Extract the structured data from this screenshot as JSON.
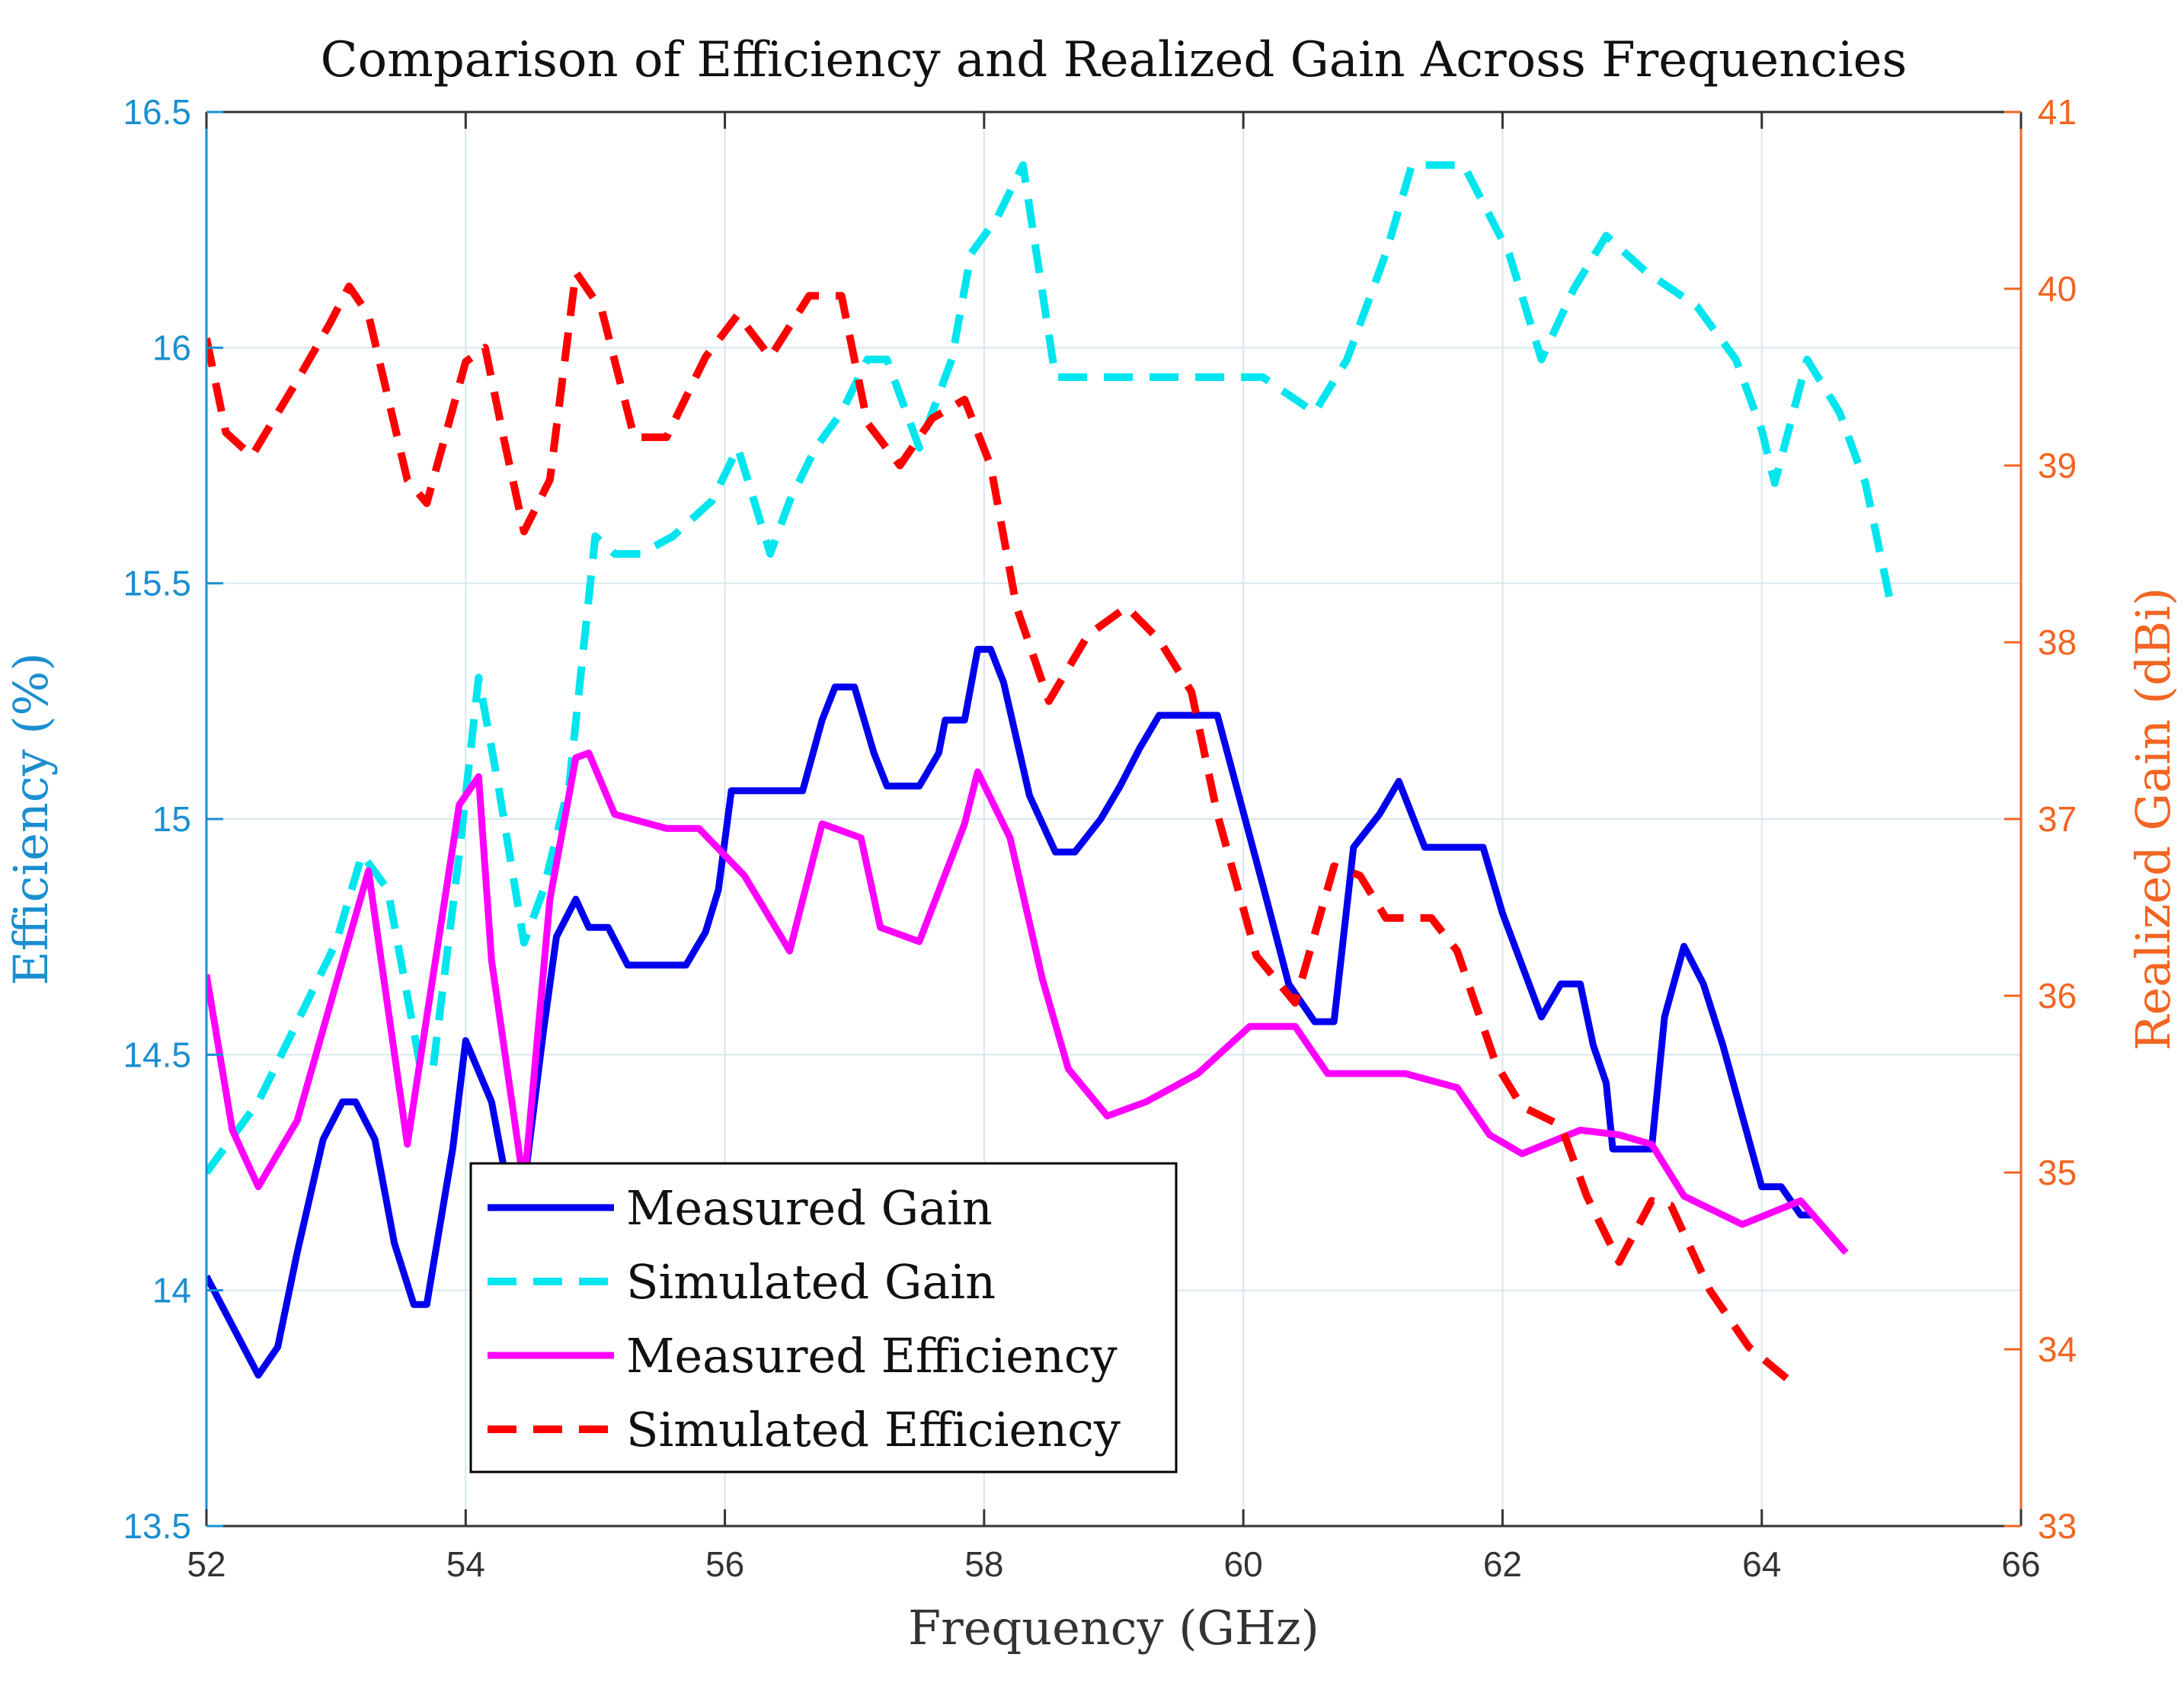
{
  "chart_data": {
    "type": "line",
    "title": "Comparison of Efficiency and Realized Gain Across Frequencies",
    "xlabel": "Frequency (GHz)",
    "ylabel_left": "Efficiency (%)",
    "ylabel_right": "Realized Gain (dBi)",
    "xlim": [
      52,
      66
    ],
    "ylim_left": [
      13.5,
      16.5
    ],
    "ylim_right": [
      33,
      41
    ],
    "xticks": [
      "52",
      "54",
      "56",
      "58",
      "60",
      "62",
      "64",
      "66"
    ],
    "yticks_left": [
      "13.5",
      "14",
      "14.5",
      "15",
      "15.5",
      "16",
      "16.5"
    ],
    "yticks_right": [
      "33",
      "34",
      "35",
      "36",
      "37",
      "38",
      "39",
      "40",
      "41"
    ],
    "grid": true,
    "legend_position": "lower-left",
    "colors": {
      "left_axis": "#1a8fd0",
      "right_axis": "#f26522",
      "grid": "#d9e6ee",
      "measured_gain": "#0000ee",
      "simulated_gain": "#00e5ee",
      "measured_efficiency": "#ff00ff",
      "simulated_efficiency": "#ff0000"
    },
    "series": [
      {
        "name": "Measured Gain",
        "axis": "left",
        "style": "solid",
        "color_key": "measured_gain",
        "points": [
          [
            52.0,
            14.03
          ],
          [
            52.4,
            13.82
          ],
          [
            52.55,
            13.88
          ],
          [
            52.7,
            14.08
          ],
          [
            52.9,
            14.32
          ],
          [
            53.05,
            14.4
          ],
          [
            53.15,
            14.4
          ],
          [
            53.3,
            14.32
          ],
          [
            53.45,
            14.1
          ],
          [
            53.6,
            13.97
          ],
          [
            53.7,
            13.97
          ],
          [
            53.9,
            14.3
          ],
          [
            54.0,
            14.53
          ],
          [
            54.2,
            14.4
          ],
          [
            54.35,
            14.18
          ],
          [
            54.45,
            14.22
          ],
          [
            54.6,
            14.55
          ],
          [
            54.7,
            14.75
          ],
          [
            54.85,
            14.83
          ],
          [
            54.95,
            14.77
          ],
          [
            55.1,
            14.77
          ],
          [
            55.25,
            14.69
          ],
          [
            55.7,
            14.69
          ],
          [
            55.85,
            14.76
          ],
          [
            55.95,
            14.85
          ],
          [
            56.05,
            15.06
          ],
          [
            56.6,
            15.06
          ],
          [
            56.75,
            15.21
          ],
          [
            56.85,
            15.28
          ],
          [
            57.0,
            15.28
          ],
          [
            57.15,
            15.14
          ],
          [
            57.25,
            15.07
          ],
          [
            57.5,
            15.07
          ],
          [
            57.65,
            15.14
          ],
          [
            57.7,
            15.21
          ],
          [
            57.85,
            15.21
          ],
          [
            57.95,
            15.36
          ],
          [
            58.05,
            15.36
          ],
          [
            58.15,
            15.29
          ],
          [
            58.35,
            15.05
          ],
          [
            58.55,
            14.93
          ],
          [
            58.7,
            14.93
          ],
          [
            58.9,
            15.0
          ],
          [
            59.05,
            15.07
          ],
          [
            59.2,
            15.15
          ],
          [
            59.35,
            15.22
          ],
          [
            59.8,
            15.22
          ],
          [
            60.15,
            14.86
          ],
          [
            60.35,
            14.65
          ],
          [
            60.55,
            14.57
          ],
          [
            60.7,
            14.57
          ],
          [
            60.85,
            14.94
          ],
          [
            61.05,
            15.01
          ],
          [
            61.2,
            15.08
          ],
          [
            61.4,
            14.94
          ],
          [
            61.85,
            14.94
          ],
          [
            62.0,
            14.8
          ],
          [
            62.15,
            14.69
          ],
          [
            62.3,
            14.58
          ],
          [
            62.45,
            14.65
          ],
          [
            62.6,
            14.65
          ],
          [
            62.7,
            14.52
          ],
          [
            62.8,
            14.44
          ],
          [
            62.85,
            14.3
          ],
          [
            63.05,
            14.3
          ],
          [
            63.15,
            14.3
          ],
          [
            63.25,
            14.58
          ],
          [
            63.4,
            14.73
          ],
          [
            63.55,
            14.65
          ],
          [
            63.7,
            14.52
          ],
          [
            63.85,
            14.37
          ],
          [
            64.0,
            14.22
          ],
          [
            64.15,
            14.22
          ],
          [
            64.3,
            14.16
          ],
          [
            64.4,
            14.16
          ]
        ]
      },
      {
        "name": "Simulated Gain",
        "axis": "right",
        "style": "dashed",
        "color_key": "simulated_gain",
        "points": [
          [
            52.0,
            35.0
          ],
          [
            52.4,
            35.4
          ],
          [
            52.6,
            35.7
          ],
          [
            52.8,
            36.0
          ],
          [
            53.0,
            36.3
          ],
          [
            53.2,
            36.8
          ],
          [
            53.4,
            36.6
          ],
          [
            53.5,
            36.2
          ],
          [
            53.65,
            35.6
          ],
          [
            53.75,
            35.6
          ],
          [
            53.95,
            36.8
          ],
          [
            54.1,
            37.8
          ],
          [
            54.25,
            37.2
          ],
          [
            54.45,
            36.3
          ],
          [
            54.6,
            36.6
          ],
          [
            54.8,
            37.2
          ],
          [
            55.0,
            38.6
          ],
          [
            55.15,
            38.5
          ],
          [
            55.35,
            38.5
          ],
          [
            55.6,
            38.6
          ],
          [
            55.9,
            38.8
          ],
          [
            56.1,
            39.1
          ],
          [
            56.35,
            38.5
          ],
          [
            56.5,
            38.8
          ],
          [
            56.7,
            39.1
          ],
          [
            56.9,
            39.3
          ],
          [
            57.1,
            39.6
          ],
          [
            57.25,
            39.6
          ],
          [
            57.5,
            39.1
          ],
          [
            57.75,
            39.6
          ],
          [
            57.9,
            40.2
          ],
          [
            58.1,
            40.4
          ],
          [
            58.3,
            40.7
          ],
          [
            58.55,
            39.5
          ],
          [
            59.0,
            39.5
          ],
          [
            59.8,
            39.5
          ],
          [
            60.15,
            39.5
          ],
          [
            60.55,
            39.3
          ],
          [
            60.8,
            39.6
          ],
          [
            61.1,
            40.2
          ],
          [
            61.3,
            40.7
          ],
          [
            61.7,
            40.7
          ],
          [
            62.05,
            40.2
          ],
          [
            62.3,
            39.6
          ],
          [
            62.55,
            40.0
          ],
          [
            62.8,
            40.3
          ],
          [
            63.1,
            40.1
          ],
          [
            63.5,
            39.9
          ],
          [
            63.8,
            39.6
          ],
          [
            64.0,
            39.2
          ],
          [
            64.1,
            38.9
          ],
          [
            64.35,
            39.6
          ],
          [
            64.6,
            39.3
          ],
          [
            64.8,
            38.9
          ],
          [
            65.0,
            38.2
          ]
        ]
      },
      {
        "name": "Measured Efficiency",
        "axis": "left",
        "style": "solid",
        "color_key": "measured_efficiency",
        "points": [
          [
            52.0,
            14.67
          ],
          [
            52.2,
            14.34
          ],
          [
            52.4,
            14.22
          ],
          [
            52.7,
            14.36
          ],
          [
            53.0,
            14.65
          ],
          [
            53.25,
            14.89
          ],
          [
            53.55,
            14.31
          ],
          [
            53.85,
            14.85
          ],
          [
            53.95,
            15.03
          ],
          [
            54.1,
            15.09
          ],
          [
            54.2,
            14.7
          ],
          [
            54.45,
            14.22
          ],
          [
            54.65,
            14.83
          ],
          [
            54.85,
            15.13
          ],
          [
            54.95,
            15.14
          ],
          [
            55.15,
            15.01
          ],
          [
            55.55,
            14.98
          ],
          [
            55.8,
            14.98
          ],
          [
            56.15,
            14.88
          ],
          [
            56.5,
            14.72
          ],
          [
            56.75,
            14.99
          ],
          [
            57.05,
            14.96
          ],
          [
            57.2,
            14.77
          ],
          [
            57.5,
            14.74
          ],
          [
            57.85,
            14.99
          ],
          [
            57.95,
            15.1
          ],
          [
            58.2,
            14.96
          ],
          [
            58.45,
            14.66
          ],
          [
            58.65,
            14.47
          ],
          [
            58.95,
            14.37
          ],
          [
            59.25,
            14.4
          ],
          [
            59.65,
            14.46
          ],
          [
            60.05,
            14.56
          ],
          [
            60.4,
            14.56
          ],
          [
            60.65,
            14.46
          ],
          [
            61.05,
            14.46
          ],
          [
            61.25,
            14.46
          ],
          [
            61.65,
            14.43
          ],
          [
            61.9,
            14.33
          ],
          [
            62.15,
            14.29
          ],
          [
            62.6,
            14.34
          ],
          [
            62.9,
            14.33
          ],
          [
            63.15,
            14.31
          ],
          [
            63.4,
            14.2
          ],
          [
            63.85,
            14.14
          ],
          [
            64.3,
            14.19
          ],
          [
            64.65,
            14.08
          ]
        ]
      },
      {
        "name": "Simulated Efficiency",
        "axis": "left",
        "style": "dashed",
        "color_key": "simulated_efficiency",
        "points": [
          [
            52.0,
            16.02
          ],
          [
            52.15,
            15.82
          ],
          [
            52.35,
            15.77
          ],
          [
            52.7,
            15.93
          ],
          [
            52.95,
            16.05
          ],
          [
            53.1,
            16.13
          ],
          [
            53.25,
            16.07
          ],
          [
            53.55,
            15.72
          ],
          [
            53.7,
            15.67
          ],
          [
            54.0,
            15.97
          ],
          [
            54.15,
            16.0
          ],
          [
            54.3,
            15.8
          ],
          [
            54.45,
            15.61
          ],
          [
            54.65,
            15.72
          ],
          [
            54.85,
            16.16
          ],
          [
            55.05,
            16.08
          ],
          [
            55.3,
            15.81
          ],
          [
            55.55,
            15.81
          ],
          [
            55.85,
            15.98
          ],
          [
            56.1,
            16.07
          ],
          [
            56.35,
            15.98
          ],
          [
            56.65,
            16.11
          ],
          [
            56.9,
            16.11
          ],
          [
            57.1,
            15.84
          ],
          [
            57.35,
            15.75
          ],
          [
            57.6,
            15.85
          ],
          [
            57.85,
            15.89
          ],
          [
            58.05,
            15.75
          ],
          [
            58.25,
            15.45
          ],
          [
            58.5,
            15.25
          ],
          [
            58.8,
            15.39
          ],
          [
            59.1,
            15.45
          ],
          [
            59.35,
            15.38
          ],
          [
            59.6,
            15.27
          ],
          [
            59.8,
            15.01
          ],
          [
            60.1,
            14.71
          ],
          [
            60.4,
            14.61
          ],
          [
            60.7,
            14.9
          ],
          [
            60.9,
            14.88
          ],
          [
            61.1,
            14.79
          ],
          [
            61.45,
            14.79
          ],
          [
            61.65,
            14.72
          ],
          [
            61.95,
            14.48
          ],
          [
            62.15,
            14.39
          ],
          [
            62.45,
            14.35
          ],
          [
            62.65,
            14.2
          ],
          [
            62.9,
            14.06
          ],
          [
            63.15,
            14.19
          ],
          [
            63.3,
            14.18
          ],
          [
            63.6,
            14.0
          ],
          [
            63.9,
            13.88
          ],
          [
            64.25,
            13.8
          ]
        ]
      }
    ]
  }
}
